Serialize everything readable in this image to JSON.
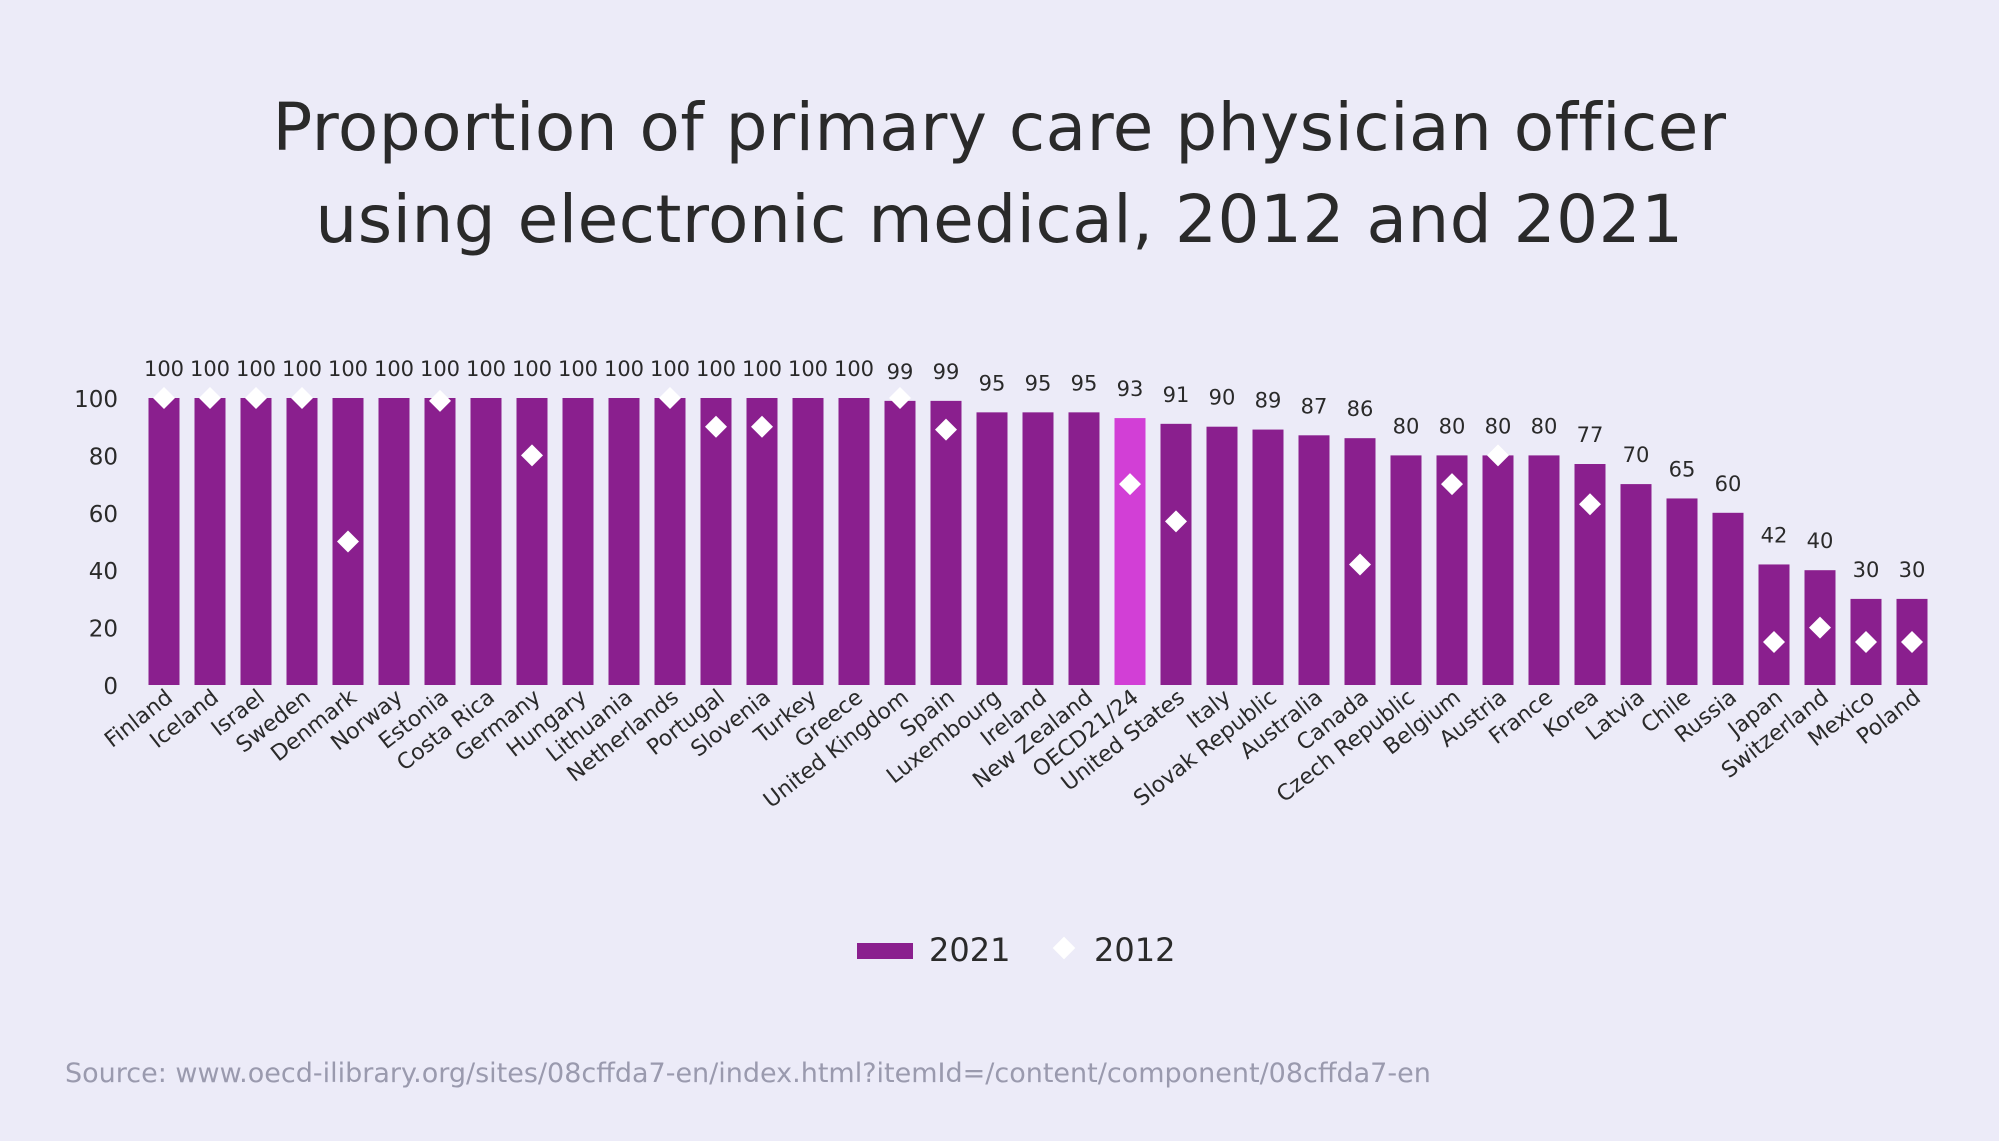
{
  "title_line1": "Proportion of primary care physician officer",
  "title_line2": "using electronic medical, 2012 and 2021",
  "source": "Source: www.oecd-ilibrary.org/sites/08cffda7-en/index.html?itemId=/content/component/08cffda7-en",
  "legend": {
    "series1": "2021",
    "series2": "2012"
  },
  "colors": {
    "bar": "#8a1f8e",
    "highlight": "#d23fd6",
    "marker": "#ffffff",
    "background": "#ecebf8"
  },
  "chart_data": {
    "type": "bar",
    "title": "Proportion of primary care physician officer using electronic medical, 2012 and 2021",
    "xlabel": "",
    "ylabel": "",
    "ylim": [
      0,
      100
    ],
    "yticks": [
      0,
      20,
      40,
      60,
      80,
      100
    ],
    "grid": false,
    "legend_position": "bottom",
    "highlight_category": "OECD21/24",
    "categories": [
      "Finland",
      "Iceland",
      "Israel",
      "Sweden",
      "Denmark",
      "Norway",
      "Estonia",
      "Costa Rica",
      "Germany",
      "Hungary",
      "Lithuania",
      "Netherlands",
      "Portugal",
      "Slovenia",
      "Turkey",
      "Greece",
      "United Kingdom",
      "Spain",
      "Luxembourg",
      "Ireland",
      "New Zealand",
      "OECD21/24",
      "United States",
      "Italy",
      "Slovak Republic",
      "Australia",
      "Canada",
      "Czech Republic",
      "Belgium",
      "Austria",
      "France",
      "Korea",
      "Latvia",
      "Chile",
      "Russia",
      "Japan",
      "Switzerland",
      "Mexico",
      "Poland"
    ],
    "series": [
      {
        "name": "2021",
        "type": "bar",
        "values": [
          100,
          100,
          100,
          100,
          100,
          100,
          100,
          100,
          100,
          100,
          100,
          100,
          100,
          100,
          100,
          100,
          99,
          99,
          95,
          95,
          95,
          93,
          91,
          90,
          89,
          87,
          86,
          80,
          80,
          80,
          80,
          77,
          70,
          65,
          60,
          42,
          40,
          30,
          30
        ]
      },
      {
        "name": "2012",
        "type": "scatter",
        "marker": "diamond",
        "values": [
          100,
          100,
          100,
          100,
          50,
          null,
          99,
          null,
          80,
          null,
          null,
          100,
          90,
          90,
          null,
          null,
          100,
          89,
          null,
          null,
          null,
          70,
          57,
          null,
          null,
          null,
          42,
          null,
          70,
          80,
          null,
          63,
          null,
          null,
          null,
          15,
          20,
          15,
          15
        ]
      }
    ]
  }
}
